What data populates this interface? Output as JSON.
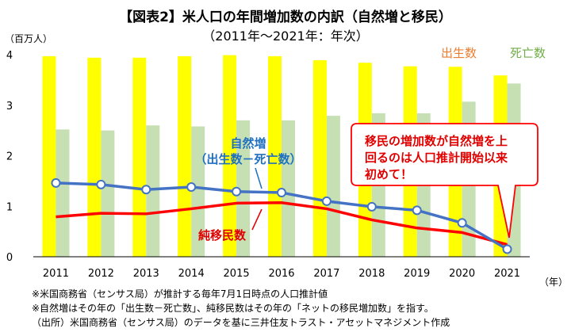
{
  "title": "【図表2】米人口の年間増加数の内訳（自然増と移民）",
  "subtitle": "（2011年～2021年：年次）",
  "y_unit": "（百万人）",
  "x_unit": "（年）",
  "labels": {
    "births": "出生数",
    "deaths": "死亡数",
    "natural_line1": "自然増",
    "natural_line2": "（出生数－死亡数）",
    "migration": "純移民数"
  },
  "callout": {
    "lines": [
      "移民の増加数が自然増を上",
      "回るのは人口推計開始以来",
      "初めて！"
    ]
  },
  "notes": [
    "※米国商務省（センサス局）が推計する毎年7月1日時点の人口推計値",
    "※自然増はその年の「出生数－死亡数」、純移民数はその年の「ネットの移民増加数」を指す。",
    "（出所）米国商務省（センサス局）のデータを基に三井住友トラスト・アセットマネジメント作成"
  ],
  "colors": {
    "births": "#FFFF00",
    "deaths": "#C6E0B4",
    "natural_increase": "#4472C4",
    "migration": "#FF0000",
    "callout_border": "#FF0000",
    "birth_label": "#ED7D31",
    "death_label": "#70AD47"
  },
  "chart_data": {
    "type": "bar",
    "categories": [
      "2011",
      "2012",
      "2013",
      "2014",
      "2015",
      "2016",
      "2017",
      "2018",
      "2019",
      "2020",
      "2021"
    ],
    "ylim": [
      0,
      4
    ],
    "yticks": [
      "0",
      "1",
      "2",
      "3",
      "4"
    ],
    "grid": false,
    "series": [
      {
        "name": "出生数",
        "type": "bar",
        "values": [
          3.97,
          3.94,
          3.94,
          3.97,
          3.99,
          3.97,
          3.89,
          3.84,
          3.77,
          3.76,
          3.59
        ]
      },
      {
        "name": "死亡数",
        "type": "bar",
        "values": [
          2.52,
          2.5,
          2.6,
          2.58,
          2.7,
          2.7,
          2.79,
          2.84,
          2.84,
          3.07,
          3.43
        ]
      },
      {
        "name": "自然増（出生数－死亡数）",
        "type": "line",
        "values": [
          1.46,
          1.43,
          1.33,
          1.38,
          1.29,
          1.27,
          1.1,
          0.99,
          0.92,
          0.67,
          0.15
        ]
      },
      {
        "name": "純移民数",
        "type": "line",
        "values": [
          0.79,
          0.86,
          0.85,
          0.95,
          1.06,
          1.07,
          0.95,
          0.73,
          0.57,
          0.48,
          0.24
        ]
      }
    ]
  }
}
